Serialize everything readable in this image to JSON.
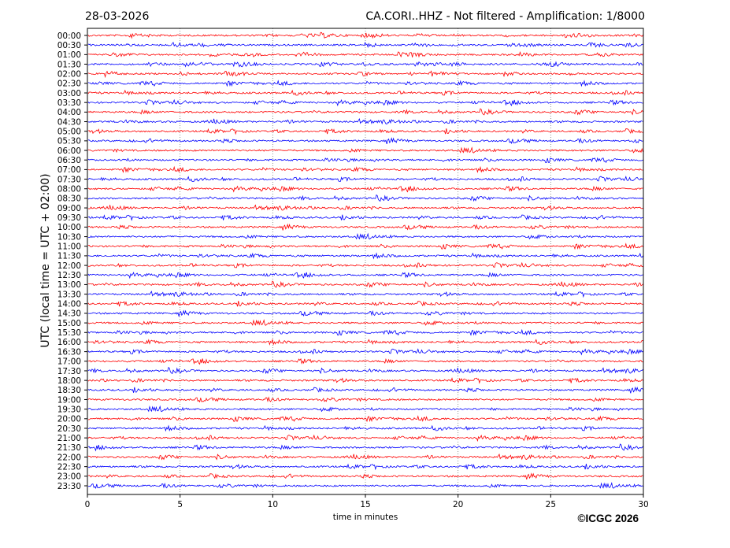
{
  "chart_data": {
    "type": "line",
    "title_left": "28-03-2026",
    "title_right": "CA.CORI..HHZ - Not filtered - Amplification: 1/8000",
    "xlabel": "time in minutes",
    "ylabel": "UTC (local time = UTC + 02:00)",
    "xlim": [
      0,
      30
    ],
    "x_ticks": [
      0,
      5,
      10,
      15,
      20,
      25,
      30
    ],
    "grid": "vertical dotted at x ticks",
    "row_labels": [
      "00:00",
      "00:30",
      "01:00",
      "01:30",
      "02:00",
      "02:30",
      "03:00",
      "03:30",
      "04:00",
      "04:30",
      "05:00",
      "05:30",
      "06:00",
      "06:30",
      "07:00",
      "07:30",
      "08:00",
      "08:30",
      "09:00",
      "09:30",
      "10:00",
      "10:30",
      "11:00",
      "11:30",
      "12:00",
      "12:30",
      "13:00",
      "13:30",
      "14:00",
      "14:30",
      "15:00",
      "15:30",
      "16:00",
      "16:30",
      "17:00",
      "17:30",
      "18:00",
      "18:30",
      "19:00",
      "19:30",
      "20:00",
      "20:30",
      "21:00",
      "21:30",
      "22:00",
      "22:30",
      "23:00",
      "23:30"
    ],
    "trace_colors": [
      "#ff0000",
      "#0000ff"
    ]
  },
  "footer": {
    "copyright": "©ICGC 2026"
  }
}
